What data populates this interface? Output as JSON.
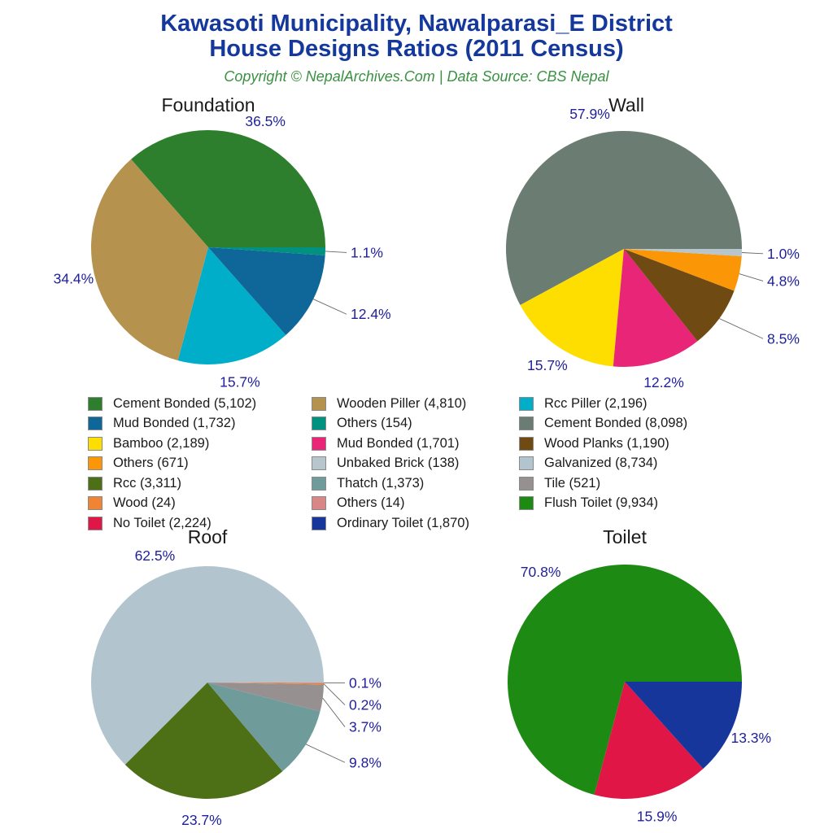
{
  "header": {
    "title_line1": "Kawasoti Municipality, Nawalparasi_E District",
    "title_line2": "House Designs Ratios (2011 Census)",
    "subtitle": "Copyright © NepalArchives.Com | Data Source: CBS Nepal"
  },
  "colors": {
    "title": "#14389c",
    "subtitle": "#3a9142",
    "percent_label": "#1f1f9c",
    "pie_title": "#1a1a1a",
    "legend_text": "#1a1a1a",
    "leader_line": "#666666"
  },
  "chart_data": [
    {
      "type": "pie",
      "title": "Foundation",
      "direction": "ccw",
      "start_angle_deg": 0,
      "slices": [
        {
          "label": "Cement Bonded",
          "value": 5102,
          "pct": "36.5%",
          "color": "#2d7f2d",
          "callout": false
        },
        {
          "label": "Wooden Piller",
          "value": 4810,
          "pct": "34.4%",
          "color": "#b5934e",
          "callout": false
        },
        {
          "label": "Rcc Piller",
          "value": 2196,
          "pct": "15.7%",
          "color": "#00aeca",
          "callout": false
        },
        {
          "label": "Mud Bonded",
          "value": 1732,
          "pct": "12.4%",
          "color": "#0e6699",
          "callout": true
        },
        {
          "label": "Others",
          "value": 154,
          "pct": "1.1%",
          "color": "#009180",
          "callout": true
        }
      ]
    },
    {
      "type": "pie",
      "title": "Wall",
      "direction": "ccw",
      "start_angle_deg": 0,
      "slices": [
        {
          "label": "Cement Bonded",
          "value": 8098,
          "pct": "57.9%",
          "color": "#6b7d72",
          "callout": false
        },
        {
          "label": "Bamboo",
          "value": 2189,
          "pct": "15.7%",
          "color": "#fedd00",
          "callout": false
        },
        {
          "label": "Mud Bonded",
          "value": 1701,
          "pct": "12.2%",
          "color": "#e92577",
          "callout": false
        },
        {
          "label": "Wood Planks",
          "value": 1190,
          "pct": "8.5%",
          "color": "#6f4b13",
          "callout": true
        },
        {
          "label": "Others",
          "value": 671,
          "pct": "4.8%",
          "color": "#fb9706",
          "callout": true
        },
        {
          "label": "Unbaked Brick",
          "value": 138,
          "pct": "1.0%",
          "color": "#b7c6cc",
          "callout": true
        }
      ]
    },
    {
      "type": "pie",
      "title": "Roof",
      "direction": "ccw",
      "start_angle_deg": 0,
      "slices": [
        {
          "label": "Galvanized",
          "value": 8734,
          "pct": "62.5%",
          "color": "#b2c5cf",
          "callout": false
        },
        {
          "label": "Rcc",
          "value": 3311,
          "pct": "23.7%",
          "color": "#4d7017",
          "callout": false
        },
        {
          "label": "Thatch",
          "value": 1373,
          "pct": "9.8%",
          "color": "#6f9b9b",
          "callout": true
        },
        {
          "label": "Tile",
          "value": 521,
          "pct": "3.7%",
          "color": "#969090",
          "callout": true
        },
        {
          "label": "Wood",
          "value": 24,
          "pct": "0.2%",
          "color": "#ef8435",
          "callout": true
        },
        {
          "label": "Others",
          "value": 14,
          "pct": "0.1%",
          "color": "#d88786",
          "callout": true
        }
      ]
    },
    {
      "type": "pie",
      "title": "Toilet",
      "direction": "ccw",
      "start_angle_deg": 0,
      "slices": [
        {
          "label": "Flush Toilet",
          "value": 9934,
          "pct": "70.8%",
          "color": "#1d8a13",
          "callout": false
        },
        {
          "label": "No Toilet",
          "value": 2224,
          "pct": "15.9%",
          "color": "#e01647",
          "callout": false
        },
        {
          "label": "Ordinary Toilet",
          "value": 1870,
          "pct": "13.3%",
          "color": "#16369c",
          "callout": false
        }
      ]
    }
  ],
  "legend": {
    "position": "middle-center",
    "columns": [
      [
        {
          "text": "Cement Bonded (5,102)",
          "color": "#2d7f2d"
        },
        {
          "text": "Mud Bonded (1,732)",
          "color": "#0e6699"
        },
        {
          "text": "Bamboo (2,189)",
          "color": "#fedd00"
        },
        {
          "text": "Others (671)",
          "color": "#fb9706"
        },
        {
          "text": "Rcc (3,311)",
          "color": "#4d7017"
        },
        {
          "text": "Wood (24)",
          "color": "#ef8435"
        },
        {
          "text": "No Toilet (2,224)",
          "color": "#e01647"
        }
      ],
      [
        {
          "text": "Wooden Piller (4,810)",
          "color": "#b5934e"
        },
        {
          "text": "Others (154)",
          "color": "#009180"
        },
        {
          "text": "Mud Bonded (1,701)",
          "color": "#e92577"
        },
        {
          "text": "Unbaked Brick (138)",
          "color": "#b7c6cc"
        },
        {
          "text": "Thatch (1,373)",
          "color": "#6f9b9b"
        },
        {
          "text": "Others (14)",
          "color": "#d88786"
        },
        {
          "text": "Ordinary Toilet (1,870)",
          "color": "#16369c"
        }
      ],
      [
        {
          "text": "Rcc Piller (2,196)",
          "color": "#00aeca"
        },
        {
          "text": "Cement Bonded (8,098)",
          "color": "#6b7d72"
        },
        {
          "text": "Wood Planks (1,190)",
          "color": "#6f4b13"
        },
        {
          "text": "Galvanized (8,734)",
          "color": "#b2c5cf"
        },
        {
          "text": "Tile (521)",
          "color": "#969090"
        },
        {
          "text": "Flush Toilet (9,934)",
          "color": "#1d8a13"
        }
      ]
    ]
  }
}
